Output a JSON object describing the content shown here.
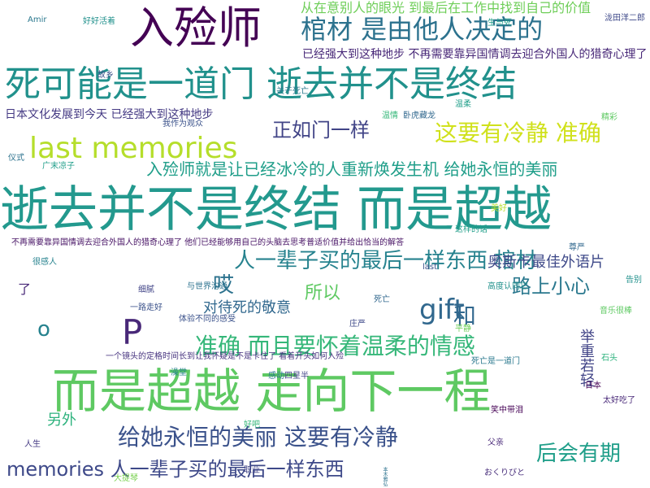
{
  "words": [
    {
      "text": "逝去并不是终结 而是超越",
      "weight": 60,
      "color": "#23998e"
    },
    {
      "text": "而是超越 走向下一程",
      "weight": 58,
      "color": "#5ec962"
    },
    {
      "text": "死可能是一道门 逝去并不是终结",
      "weight": 44,
      "color": "#21918c"
    },
    {
      "text": "入殓师",
      "weight": 54,
      "color": "#440154"
    },
    {
      "text": "last memories",
      "weight": 36,
      "color": "#b5de2b"
    },
    {
      "text": "gift",
      "weight": 34,
      "color": "#31688e"
    },
    {
      "text": "P",
      "weight": 42,
      "color": "#482878"
    },
    {
      "text": "棺材 是由他人决定的",
      "weight": 32,
      "color": "#2c728e"
    },
    {
      "text": "准确 而且要怀着温柔的情感",
      "weight": 28,
      "color": "#35b779"
    },
    {
      "text": "给她永恒的美丽 这要有冷静",
      "weight": 28,
      "color": "#3b528b"
    },
    {
      "text": "人一辈子买的最后一样东西 棺材",
      "weight": 26,
      "color": "#26828e"
    },
    {
      "text": "这要有冷静 准确",
      "weight": 28,
      "color": "#d0e11c"
    },
    {
      "text": "正如门一样",
      "weight": 24,
      "color": "#414487"
    },
    {
      "text": "入殓师就是让已经冰冷的人重新焕发生机 给她永恒的美丽",
      "weight": 20,
      "color": "#1f9e89"
    },
    {
      "text": "memories 人一辈子买的最后一样东西",
      "weight": 24,
      "color": "#3e4989"
    },
    {
      "text": "后会有期",
      "weight": 26,
      "color": "#1f9e89"
    },
    {
      "text": "路上小心",
      "weight": 24,
      "color": "#2a788e"
    },
    {
      "text": "奥斯卡最佳外语片",
      "weight": 18,
      "color": "#3e4989"
    },
    {
      "text": "对待死的敬意",
      "weight": 18,
      "color": "#31688e"
    },
    {
      "text": "从在意别人的眼光 到最后在工作中找到自己的价值",
      "weight": 16,
      "color": "#6ece58"
    },
    {
      "text": "已经强大到这种地步 不再需要靠异国情调去迎合外国人的猎奇心理了",
      "weight": 14,
      "color": "#482878"
    },
    {
      "text": "日本文化发展到今天 已经强大到这种地步",
      "weight": 14,
      "color": "#443983"
    },
    {
      "text": "不再需要靠异国情调去迎合外国人的猎奇心理了 他们已经能够用自己的头脑去思考普适价值并给出恰当的解答",
      "weight": 10,
      "color": "#471365"
    },
    {
      "text": "所以",
      "weight": 22,
      "color": "#5ec962"
    },
    {
      "text": "和",
      "weight": 28,
      "color": "#31688e"
    },
    {
      "text": "哎",
      "weight": 26,
      "color": "#2c728e"
    },
    {
      "text": "o",
      "weight": 26,
      "color": "#26828e"
    },
    {
      "text": "另外",
      "weight": 18,
      "color": "#2db27d"
    },
    {
      "text": "举重若轻",
      "weight": 18,
      "color": "#414487"
    },
    {
      "text": "了",
      "weight": 16,
      "color": "#482878"
    },
    {
      "text": "一个镜头的定格时间长到让我怀疑是不是卡住了 看着开头如何入殓",
      "weight": 10,
      "color": "#46337f"
    },
    {
      "text": "体验不同的感受",
      "weight": 10,
      "color": "#3b528b"
    },
    {
      "text": "与世界沟通",
      "weight": 10,
      "color": "#2c728e"
    },
    {
      "text": "高度认同它",
      "weight": 10,
      "color": "#21918c"
    },
    {
      "text": "这样的话",
      "weight": 10,
      "color": "#1f9e89"
    },
    {
      "text": "卧虎藏龙",
      "weight": 10,
      "color": "#31688e"
    },
    {
      "text": "四星半",
      "weight": 10,
      "color": "#414487"
    },
    {
      "text": "一路走好",
      "weight": 10,
      "color": "#3b528b"
    },
    {
      "text": "死亡是一道门",
      "weight": 10,
      "color": "#2a788e"
    },
    {
      "text": "笑中带泪",
      "weight": 10,
      "color": "#440154"
    },
    {
      "text": "太好吃了",
      "weight": 10,
      "color": "#482878"
    },
    {
      "text": "音乐很棒",
      "weight": 10,
      "color": "#5ec962"
    },
    {
      "text": "好吧",
      "weight": 10,
      "color": "#35b779"
    },
    {
      "text": "很感人",
      "weight": 10,
      "color": "#26828e"
    },
    {
      "text": "おくりびと",
      "weight": 10,
      "color": "#472d7b"
    },
    {
      "text": "泷田洋二郎",
      "weight": 10,
      "color": "#3e4989"
    },
    {
      "text": "本木雅弘",
      "weight": 10,
      "color": "#2c728e"
    },
    {
      "text": "广末凉子",
      "weight": 10,
      "color": "#1f9e89"
    },
    {
      "text": "关于死亡",
      "weight": 10,
      "color": "#2a788e"
    },
    {
      "text": "我作为观众",
      "weight": 10,
      "color": "#3b528b"
    },
    {
      "text": "生与死",
      "weight": 10,
      "color": "#1f9e89"
    },
    {
      "text": "细腻",
      "weight": 10,
      "color": "#414487"
    },
    {
      "text": "温情",
      "weight": 10,
      "color": "#35b779"
    },
    {
      "text": "大提琴",
      "weight": 10,
      "color": "#7ad151"
    },
    {
      "text": "好好活着",
      "weight": 10,
      "color": "#21918c"
    },
    {
      "text": "人生",
      "weight": 10,
      "color": "#443983"
    },
    {
      "text": "尊严",
      "weight": 10,
      "color": "#31688e"
    },
    {
      "text": "平静",
      "weight": 10,
      "color": "#6ece58"
    },
    {
      "text": "感动",
      "weight": 10,
      "color": "#2a788e"
    },
    {
      "text": "故乡",
      "weight": 10,
      "color": "#3b528b"
    },
    {
      "text": "石头",
      "weight": 10,
      "color": "#2db27d"
    },
    {
      "text": "父亲",
      "weight": 10,
      "color": "#482878"
    },
    {
      "text": "澡堂",
      "weight": 10,
      "color": "#26828e"
    },
    {
      "text": "日本",
      "weight": 10,
      "color": "#440154"
    },
    {
      "text": "职业",
      "weight": 10,
      "color": "#414487"
    },
    {
      "text": "仪式",
      "weight": 10,
      "color": "#2c728e"
    },
    {
      "text": "告别",
      "weight": 10,
      "color": "#21918c"
    },
    {
      "text": "美好",
      "weight": 10,
      "color": "#b5de2b"
    },
    {
      "text": "庄严",
      "weight": 10,
      "color": "#3e4989"
    },
    {
      "text": "温柔",
      "weight": 10,
      "color": "#1f9e89"
    },
    {
      "text": "死亡",
      "weight": 10,
      "color": "#31688e"
    },
    {
      "text": "Amir",
      "weight": 10,
      "color": "#2a788e"
    },
    {
      "text": "last",
      "weight": 10,
      "color": "#3b528b"
    },
    {
      "text": "精彩",
      "weight": 10,
      "color": "#5ec962"
    },
    {
      "text": "回忆",
      "weight": 10,
      "color": "#443983"
    }
  ]
}
